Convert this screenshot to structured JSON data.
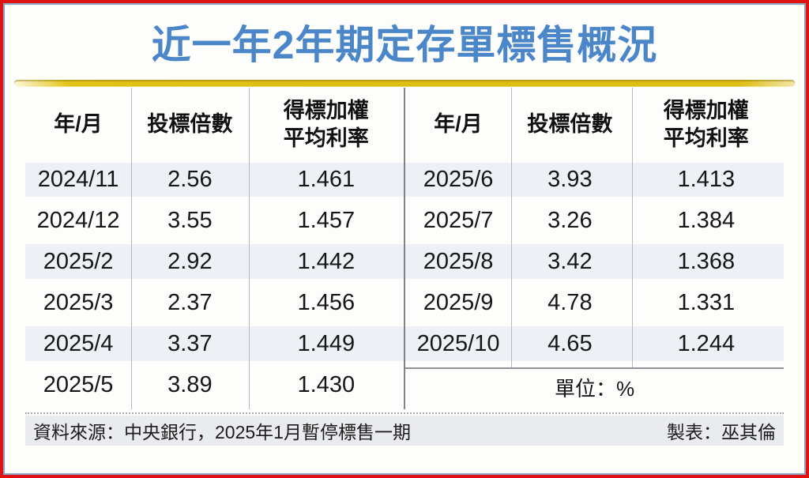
{
  "page": {
    "title": "近一年2年期定存單標售概況",
    "accent_title_color": "#4b86c9",
    "border_outer_color": "#e01212",
    "border_inner_color": "#8aa5c2",
    "gold_bar_color": "#ddbe10",
    "stripe_color": "#edf1f5"
  },
  "table": {
    "col_year": "年/月",
    "col_multiple": "投標倍數",
    "col_rate": "得標加權\n平均利率",
    "left_rows": [
      {
        "month": "2024/11",
        "multiple": "2.56",
        "rate": "1.461"
      },
      {
        "month": "2024/12",
        "multiple": "3.55",
        "rate": "1.457"
      },
      {
        "month": "2025/2",
        "multiple": "2.92",
        "rate": "1.442"
      },
      {
        "month": "2025/3",
        "multiple": "2.37",
        "rate": "1.456"
      },
      {
        "month": "2025/4",
        "multiple": "3.37",
        "rate": "1.449"
      },
      {
        "month": "2025/5",
        "multiple": "3.89",
        "rate": "1.430"
      }
    ],
    "right_rows": [
      {
        "month": "2025/6",
        "multiple": "3.93",
        "rate": "1.413"
      },
      {
        "month": "2025/7",
        "multiple": "3.26",
        "rate": "1.384"
      },
      {
        "month": "2025/8",
        "multiple": "3.42",
        "rate": "1.368"
      },
      {
        "month": "2025/9",
        "multiple": "4.78",
        "rate": "1.331"
      },
      {
        "month": "2025/10",
        "multiple": "4.65",
        "rate": "1.244"
      }
    ],
    "unit_note": "單位：%"
  },
  "footer": {
    "source": "資料來源：中央銀行，2025年1月暫停標售一期",
    "credit": "製表：巫其倫"
  },
  "chart_data": {
    "type": "table",
    "title": "近一年2年期定存單標售概況",
    "columns": [
      "年/月",
      "投標倍數",
      "得標加權平均利率"
    ],
    "rows": [
      [
        "2024/11",
        2.56,
        1.461
      ],
      [
        "2024/12",
        3.55,
        1.457
      ],
      [
        "2025/2",
        2.92,
        1.442
      ],
      [
        "2025/3",
        2.37,
        1.456
      ],
      [
        "2025/4",
        3.37,
        1.449
      ],
      [
        "2025/5",
        3.89,
        1.43
      ],
      [
        "2025/6",
        3.93,
        1.413
      ],
      [
        "2025/7",
        3.26,
        1.384
      ],
      [
        "2025/8",
        3.42,
        1.368
      ],
      [
        "2025/9",
        4.78,
        1.331
      ],
      [
        "2025/10",
        4.65,
        1.244
      ]
    ],
    "unit": "%",
    "source_note": "資料來源：中央銀行，2025年1月暫停標售一期",
    "credit_note": "製表：巫其倫"
  }
}
